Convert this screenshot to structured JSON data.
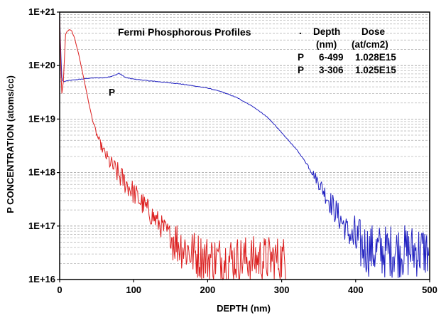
{
  "chart_data": {
    "type": "line",
    "title": "Fermi Phosphorous Profiles",
    "xlabel": "DEPTH (nm)",
    "ylabel": "P CONCENTRATION (atoms/cc)",
    "xscale": "linear",
    "yscale": "log",
    "xlim": [
      0,
      500
    ],
    "ylim": [
      1e+16,
      1e+21
    ],
    "x_ticks": [
      0,
      100,
      200,
      300,
      400,
      500
    ],
    "x_tick_labels": [
      "0",
      "100",
      "200",
      "300",
      "400",
      "500"
    ],
    "y_ticks": [
      1e+16,
      1e+17,
      1e+18,
      1e+19,
      1e+20,
      1e+21
    ],
    "y_tick_labels": [
      "1E+16",
      "1E+17",
      "1E+18",
      "1E+19",
      "1E+20",
      "1E+21"
    ],
    "grid": "dashed horizontal log gridlines, light gray",
    "legend": {
      "position": "top-right",
      "header": [
        {
          "marker": ".",
          "depth": "Depth",
          "dose": "Dose"
        },
        {
          "marker": "",
          "depth": "(nm)",
          "dose": "(at/cm2)"
        }
      ],
      "entries": [
        {
          "marker": "P",
          "depth": "6-499",
          "dose": "1.028E15"
        },
        {
          "marker": "P",
          "depth": "3-306",
          "dose": "1.025E15"
        }
      ]
    },
    "annotations": [
      {
        "text": "P",
        "x": 70,
        "y": 3.2e+19
      }
    ],
    "series": [
      {
        "name": "6-499",
        "color": "#2020c0",
        "x": [
          0,
          1,
          2,
          3,
          4,
          6,
          10,
          20,
          30,
          40,
          50,
          60,
          70,
          75,
          80,
          85,
          90,
          100,
          120,
          140,
          160,
          180,
          200,
          220,
          240,
          260,
          270,
          280,
          290,
          300,
          310,
          320,
          330,
          340,
          350,
          360,
          370,
          380,
          390,
          400,
          410,
          420,
          430,
          440,
          450,
          460,
          470,
          480,
          490,
          499
        ],
        "y": [
          1e+21,
          3e+20,
          1.2e+20,
          6e+19,
          5.2e+19,
          5e+19,
          5.2e+19,
          5.4e+19,
          5.6e+19,
          5.8e+19,
          5.9e+19,
          5.9e+19,
          6.3e+19,
          6.6e+19,
          7.2e+19,
          6.5e+19,
          5.9e+19,
          5.6e+19,
          5.2e+19,
          4.9e+19,
          4.6e+19,
          4.2e+19,
          3.8e+19,
          3.2e+19,
          2.5e+19,
          1.75e+19,
          1.4e+19,
          1.1e+19,
          8e+18,
          5.5e+18,
          3.9e+18,
          2.7e+18,
          1.75e+18,
          1.1e+18,
          6.5e+17,
          3.8e+17,
          2.2e+17,
          1.3e+17,
          7.5e+16,
          5e+16,
          4e+16,
          3.5e+16,
          3.4e+16,
          3.3e+16,
          3.5e+16,
          3.4e+16,
          3.3e+16,
          3.5e+16,
          3.4e+16,
          3.4e+16
        ],
        "noise_above_x": 330
      },
      {
        "name": "3-306",
        "color": "#dc2020",
        "x": [
          0,
          1,
          2,
          3,
          5,
          8,
          10,
          13,
          16,
          20,
          25,
          30,
          35,
          40,
          45,
          50,
          55,
          60,
          65,
          70,
          80,
          90,
          100,
          110,
          120,
          130,
          140,
          150,
          160,
          170,
          180,
          190,
          200,
          220,
          240,
          260,
          280,
          300,
          306
        ],
        "y": [
          1e+21,
          2.2e+20,
          6e+19,
          3e+19,
          5e+19,
          3.8e+20,
          4.3e+20,
          4.7e+20,
          4.5e+20,
          3.3e+20,
          1.8e+20,
          8.5e+19,
          4e+19,
          1.8e+19,
          9e+18,
          5.2e+18,
          3.4e+18,
          2.4e+18,
          1.8e+18,
          1.4e+18,
          9e+17,
          6.2e+17,
          4.2e+17,
          2.8e+17,
          1.9e+17,
          1.3e+17,
          9e+16,
          6.5e+16,
          4.8e+16,
          3.8e+16,
          3.1e+16,
          2.7e+16,
          2.5e+16,
          2.4e+16,
          2.4e+16,
          2.4e+16,
          2.4e+16,
          2.4e+16,
          2.4e+16
        ],
        "noise_above_x": 40
      }
    ]
  }
}
